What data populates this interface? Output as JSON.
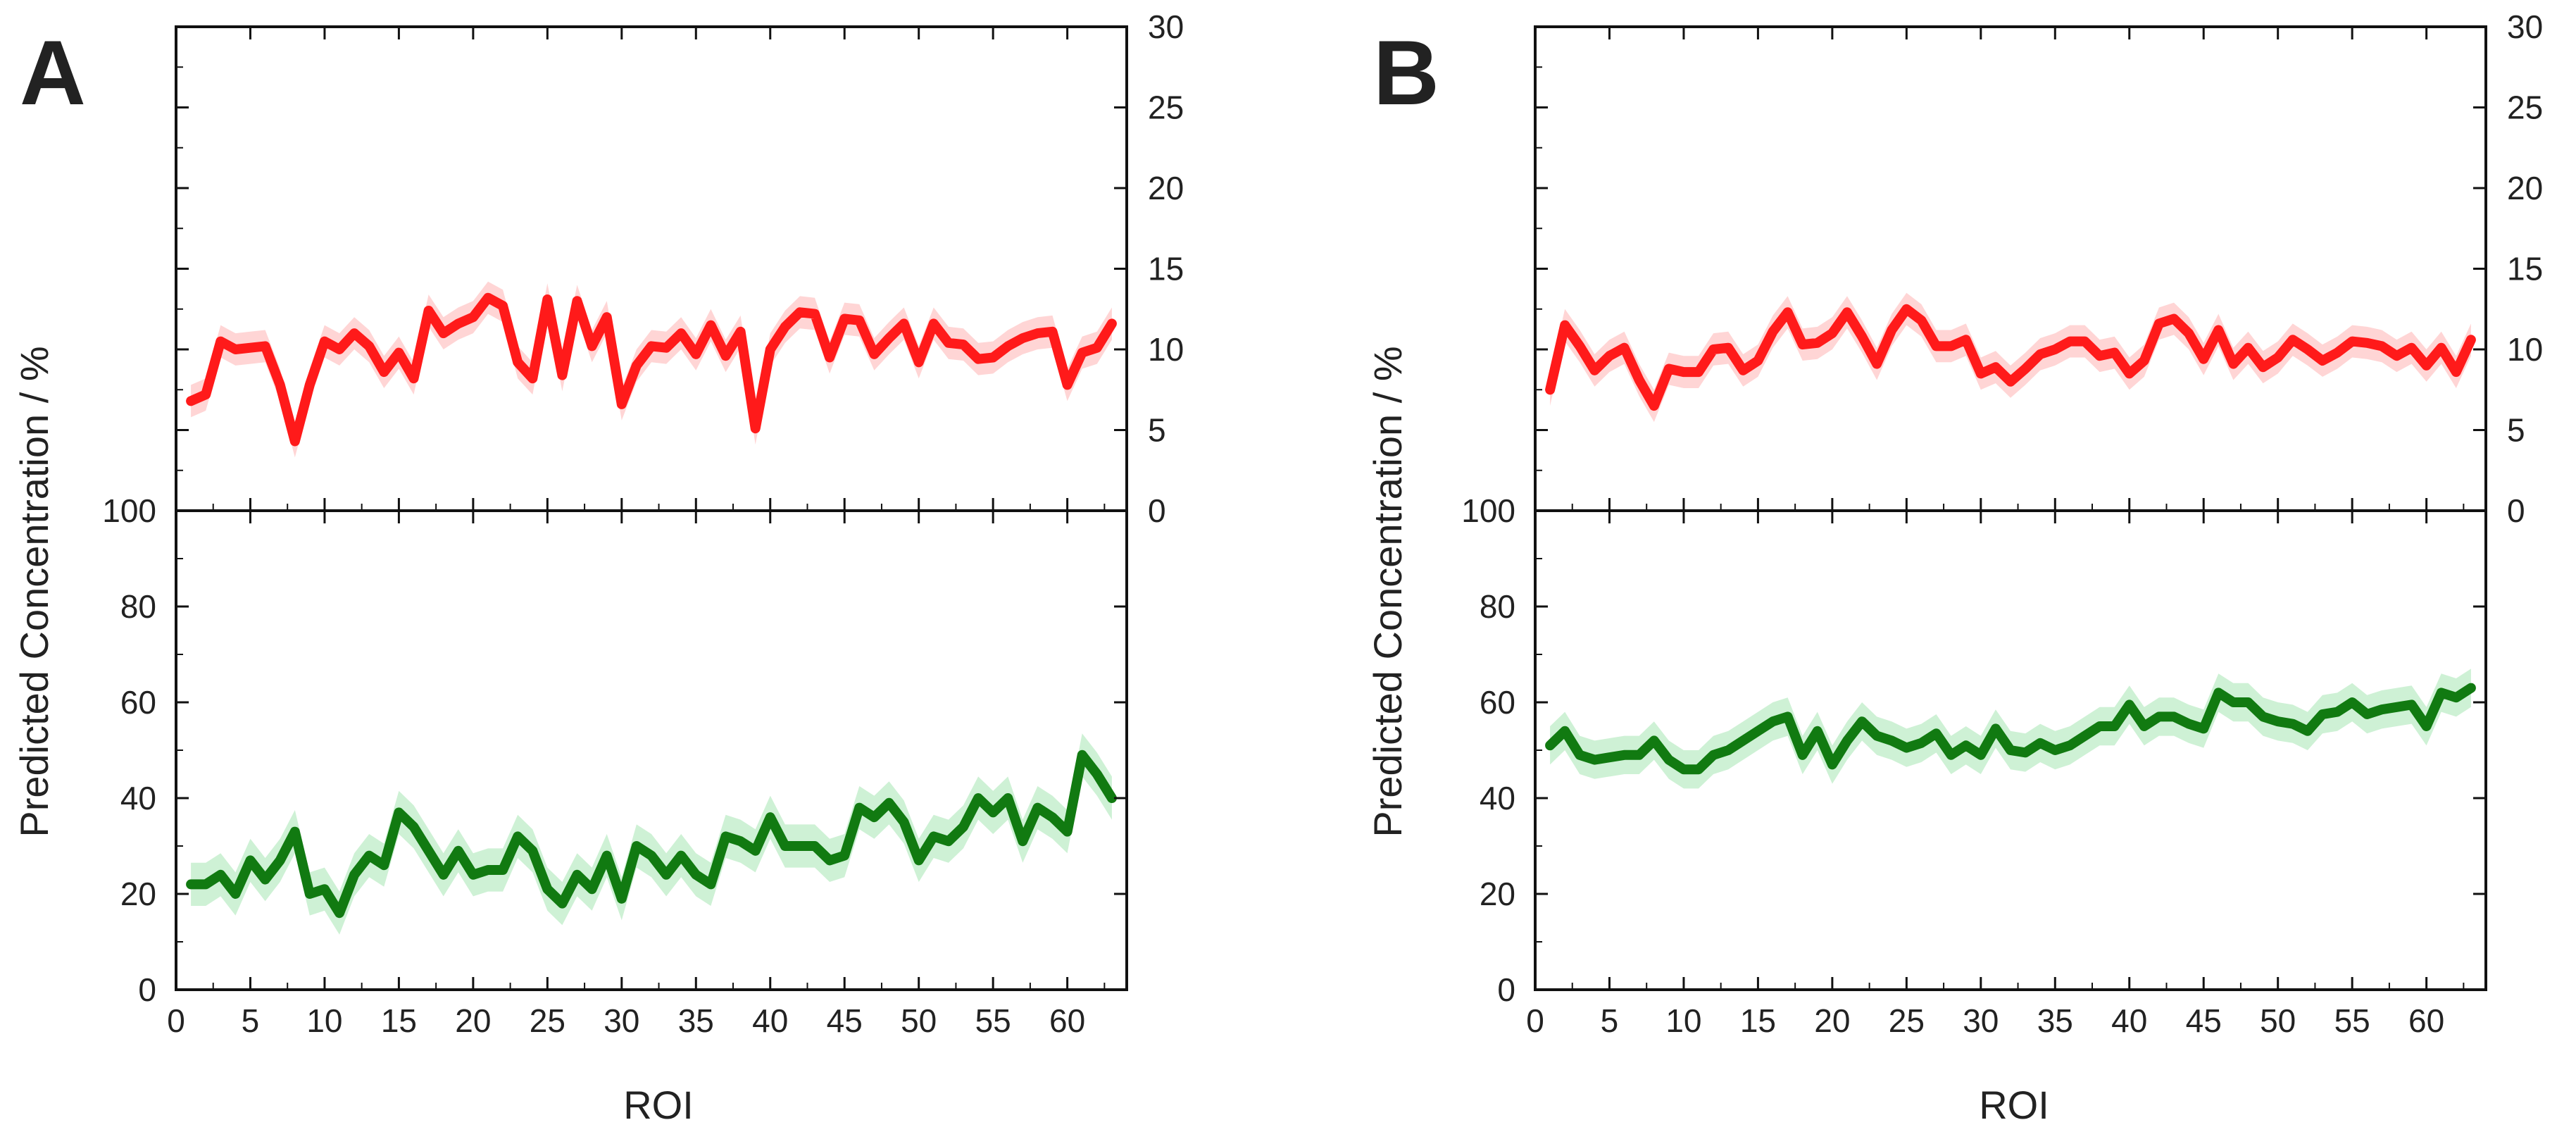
{
  "figure": {
    "panels": [
      {
        "id": "A",
        "label": "A",
        "ylabel": "Predicted Concentration / %",
        "xlabel": "ROI"
      },
      {
        "id": "B",
        "label": "B",
        "ylabel": "Predicted Concentration / %",
        "xlabel": "ROI"
      }
    ]
  },
  "chart_data": [
    {
      "panel": "A",
      "position": "top",
      "type": "line",
      "title": "",
      "xlabel": "",
      "ylabel": "",
      "xlim": [
        0,
        64
      ],
      "ylim": [
        0,
        30
      ],
      "x_ticks": [
        0,
        5,
        10,
        15,
        20,
        25,
        30,
        35,
        40,
        45,
        50,
        55,
        60
      ],
      "y_ticks": [
        0,
        5,
        10,
        15,
        20,
        25,
        30
      ],
      "y_axis_side": "right",
      "series": [
        {
          "name": "red",
          "color": "#ff1a1a",
          "band_color": "#ffb3b3",
          "band_halfwidth": 1.0,
          "x": [
            1,
            2,
            3,
            4,
            5,
            6,
            7,
            8,
            9,
            10,
            11,
            12,
            13,
            14,
            15,
            16,
            17,
            18,
            19,
            20,
            21,
            22,
            23,
            24,
            25,
            26,
            27,
            28,
            29,
            30,
            31,
            32,
            33,
            34,
            35,
            36,
            37,
            38,
            39,
            40,
            41,
            42,
            43,
            44,
            45,
            46,
            47,
            48,
            49,
            50,
            51,
            52,
            53,
            54,
            55,
            56,
            57,
            58,
            59,
            60,
            61,
            62,
            63
          ],
          "values": [
            6.8,
            7.2,
            10.5,
            10.0,
            10.1,
            10.2,
            7.8,
            4.3,
            7.8,
            10.5,
            10.0,
            11.0,
            10.2,
            8.6,
            9.8,
            8.2,
            12.4,
            11.0,
            11.6,
            12.0,
            13.2,
            12.7,
            9.2,
            8.2,
            13.1,
            8.4,
            13.0,
            10.2,
            12.0,
            6.6,
            9.0,
            10.2,
            10.1,
            11.0,
            9.7,
            11.5,
            9.6,
            11.1,
            5.1,
            10.0,
            11.4,
            12.3,
            12.2,
            9.5,
            11.9,
            11.8,
            9.7,
            10.7,
            11.6,
            9.2,
            11.6,
            10.4,
            10.3,
            9.4,
            9.5,
            10.2,
            10.7,
            11.0,
            11.1,
            7.8,
            9.8,
            10.1,
            11.6
          ]
        }
      ]
    },
    {
      "panel": "A",
      "position": "bottom",
      "type": "line",
      "title": "",
      "xlabel": "ROI",
      "ylabel": "Predicted Concentration / %",
      "xlim": [
        0,
        64
      ],
      "ylim": [
        0,
        100
      ],
      "x_ticks": [
        0,
        5,
        10,
        15,
        20,
        25,
        30,
        35,
        40,
        45,
        50,
        55,
        60
      ],
      "y_ticks": [
        0,
        20,
        40,
        60,
        80,
        100
      ],
      "y_axis_side": "left",
      "series": [
        {
          "name": "green",
          "color": "#117a11",
          "band_color": "#a6e6b3",
          "band_halfwidth": 4.5,
          "x": [
            1,
            2,
            3,
            4,
            5,
            6,
            7,
            8,
            9,
            10,
            11,
            12,
            13,
            14,
            15,
            16,
            17,
            18,
            19,
            20,
            21,
            22,
            23,
            24,
            25,
            26,
            27,
            28,
            29,
            30,
            31,
            32,
            33,
            34,
            35,
            36,
            37,
            38,
            39,
            40,
            41,
            42,
            43,
            44,
            45,
            46,
            47,
            48,
            49,
            50,
            51,
            52,
            53,
            54,
            55,
            56,
            57,
            58,
            59,
            60,
            61,
            62,
            63
          ],
          "values": [
            22,
            22,
            24,
            20,
            27,
            23,
            27,
            33,
            20,
            21,
            16,
            24,
            28,
            26,
            37,
            34,
            29,
            24,
            29,
            24,
            25,
            25,
            32,
            29,
            21,
            18,
            24,
            21,
            28,
            19,
            30,
            28,
            24,
            28,
            24,
            22,
            32,
            31,
            29,
            36,
            30,
            30,
            30,
            27,
            28,
            38,
            36,
            39,
            35,
            27,
            32,
            31,
            34,
            40,
            37,
            40,
            31,
            38,
            36,
            33,
            49,
            45,
            40
          ]
        }
      ]
    },
    {
      "panel": "B",
      "position": "top",
      "type": "line",
      "title": "",
      "xlabel": "",
      "ylabel": "",
      "xlim": [
        0,
        64
      ],
      "ylim": [
        0,
        30
      ],
      "x_ticks": [
        0,
        5,
        10,
        15,
        20,
        25,
        30,
        35,
        40,
        45,
        50,
        55,
        60
      ],
      "y_ticks": [
        0,
        5,
        10,
        15,
        20,
        25,
        30
      ],
      "y_axis_side": "right",
      "series": [
        {
          "name": "red",
          "color": "#ff1a1a",
          "band_color": "#ffb3b3",
          "band_halfwidth": 1.0,
          "x": [
            1,
            2,
            3,
            4,
            5,
            6,
            7,
            8,
            9,
            10,
            11,
            12,
            13,
            14,
            15,
            16,
            17,
            18,
            19,
            20,
            21,
            22,
            23,
            24,
            25,
            26,
            27,
            28,
            29,
            30,
            31,
            32,
            33,
            34,
            35,
            36,
            37,
            38,
            39,
            40,
            41,
            42,
            43,
            44,
            45,
            46,
            47,
            48,
            49,
            50,
            51,
            52,
            53,
            54,
            55,
            56,
            57,
            58,
            59,
            60,
            61,
            62,
            63
          ],
          "values": [
            7.5,
            11.5,
            10.2,
            8.7,
            9.6,
            10.1,
            8.1,
            6.5,
            8.8,
            8.6,
            8.6,
            10.0,
            10.1,
            8.7,
            9.3,
            11.1,
            12.3,
            10.3,
            10.4,
            11.0,
            12.3,
            10.8,
            9.1,
            11.2,
            12.5,
            11.8,
            10.2,
            10.2,
            10.6,
            8.5,
            8.9,
            8.0,
            8.8,
            9.7,
            10.0,
            10.5,
            10.5,
            9.6,
            9.8,
            8.5,
            9.3,
            11.6,
            11.9,
            11.0,
            9.4,
            11.2,
            9.1,
            10.1,
            8.9,
            9.5,
            10.6,
            10.0,
            9.3,
            9.8,
            10.5,
            10.4,
            10.2,
            9.6,
            10.1,
            9.0,
            10.1,
            8.6,
            10.6
          ]
        }
      ]
    },
    {
      "panel": "B",
      "position": "bottom",
      "type": "line",
      "title": "",
      "xlabel": "ROI",
      "ylabel": "Predicted Concentration / %",
      "xlim": [
        0,
        64
      ],
      "ylim": [
        0,
        100
      ],
      "x_ticks": [
        0,
        5,
        10,
        15,
        20,
        25,
        30,
        35,
        40,
        45,
        50,
        55,
        60
      ],
      "y_ticks": [
        0,
        20,
        40,
        60,
        80,
        100
      ],
      "y_axis_side": "left",
      "series": [
        {
          "name": "green",
          "color": "#117a11",
          "band_color": "#a6e6b3",
          "band_halfwidth": 4.0,
          "x": [
            1,
            2,
            3,
            4,
            5,
            6,
            7,
            8,
            9,
            10,
            11,
            12,
            13,
            14,
            15,
            16,
            17,
            18,
            19,
            20,
            21,
            22,
            23,
            24,
            25,
            26,
            27,
            28,
            29,
            30,
            31,
            32,
            33,
            34,
            35,
            36,
            37,
            38,
            39,
            40,
            41,
            42,
            43,
            44,
            45,
            46,
            47,
            48,
            49,
            50,
            51,
            52,
            53,
            54,
            55,
            56,
            57,
            58,
            59,
            60,
            61,
            62,
            63
          ],
          "values": [
            51,
            54,
            49,
            48,
            48.5,
            49,
            49,
            52,
            48,
            46,
            46,
            49,
            50,
            52,
            54,
            56,
            57,
            49,
            54,
            47,
            52,
            56,
            53,
            52,
            50.5,
            51.5,
            53.5,
            49,
            51,
            49,
            54.5,
            50,
            49.5,
            51.5,
            50,
            51,
            53,
            55,
            55,
            59.5,
            55,
            57,
            57,
            55.5,
            54.5,
            62,
            60,
            60,
            57,
            56,
            55.5,
            54,
            57.5,
            58,
            60,
            57.5,
            58.5,
            59,
            59.5,
            55,
            62,
            61,
            63
          ]
        }
      ]
    }
  ]
}
